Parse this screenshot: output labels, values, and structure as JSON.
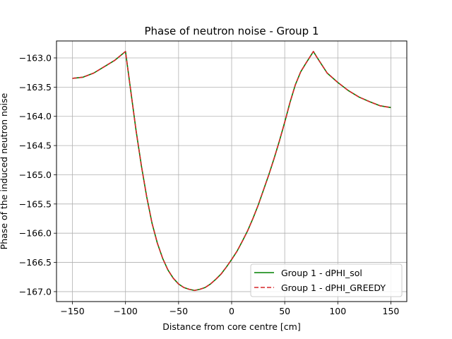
{
  "chart_data": {
    "type": "line",
    "title": "Phase of neutron noise - Group 1",
    "xlabel": "Distance from core centre [cm]",
    "ylabel": "Phase of the induced neutron noise",
    "xlim": [
      -165,
      165
    ],
    "ylim": [
      -167.17,
      -162.71
    ],
    "xticks": [
      -150,
      -100,
      -50,
      0,
      50,
      100,
      150
    ],
    "yticks": [
      -163.0,
      -163.5,
      -164.0,
      -164.5,
      -165.0,
      -165.5,
      -166.0,
      -166.5,
      -167.0
    ],
    "xtick_labels": [
      "−150",
      "−100",
      "−50",
      "0",
      "50",
      "100",
      "150"
    ],
    "ytick_labels": [
      "−163.0",
      "−163.5",
      "−164.0",
      "−164.5",
      "−165.0",
      "−165.5",
      "−166.0",
      "−166.5",
      "−167.0"
    ],
    "grid": true,
    "legend_position": "lower right",
    "series": [
      {
        "name": "Group 1 - dPHI_sol",
        "color": "#008000",
        "style": "solid",
        "x": [
          -150,
          -140,
          -130,
          -120,
          -110,
          -100,
          -95,
          -90,
          -85,
          -80,
          -75,
          -70,
          -65,
          -60,
          -55,
          -50,
          -45,
          -40,
          -35,
          -30,
          -25,
          -20,
          -15,
          -10,
          -5,
          0,
          5,
          10,
          15,
          20,
          25,
          30,
          35,
          40,
          45,
          50,
          55,
          60,
          65,
          70,
          77,
          80,
          90,
          100,
          110,
          120,
          130,
          140,
          150
        ],
        "y": [
          -163.35,
          -163.33,
          -163.26,
          -163.15,
          -163.04,
          -162.89,
          -163.57,
          -164.25,
          -164.85,
          -165.38,
          -165.83,
          -166.17,
          -166.43,
          -166.63,
          -166.77,
          -166.87,
          -166.93,
          -166.96,
          -166.98,
          -166.96,
          -166.93,
          -166.87,
          -166.79,
          -166.7,
          -166.58,
          -166.45,
          -166.31,
          -166.14,
          -165.96,
          -165.75,
          -165.52,
          -165.26,
          -165.0,
          -164.72,
          -164.42,
          -164.1,
          -163.76,
          -163.46,
          -163.24,
          -163.09,
          -162.89,
          -162.98,
          -163.26,
          -163.42,
          -163.56,
          -163.67,
          -163.75,
          -163.82,
          -163.85
        ]
      },
      {
        "name": "Group 1 - dPHI_GREEDY",
        "color": "#d62728",
        "style": "dashed",
        "x": [
          -150,
          -140,
          -130,
          -120,
          -110,
          -100,
          -95,
          -90,
          -85,
          -80,
          -75,
          -70,
          -65,
          -60,
          -55,
          -50,
          -45,
          -40,
          -35,
          -30,
          -25,
          -20,
          -15,
          -10,
          -5,
          0,
          5,
          10,
          15,
          20,
          25,
          30,
          35,
          40,
          45,
          50,
          55,
          60,
          65,
          70,
          77,
          80,
          90,
          100,
          110,
          120,
          130,
          140,
          150
        ],
        "y": [
          -163.35,
          -163.33,
          -163.26,
          -163.15,
          -163.04,
          -162.89,
          -163.57,
          -164.25,
          -164.85,
          -165.38,
          -165.83,
          -166.17,
          -166.43,
          -166.63,
          -166.77,
          -166.87,
          -166.93,
          -166.96,
          -166.98,
          -166.96,
          -166.93,
          -166.87,
          -166.79,
          -166.7,
          -166.58,
          -166.45,
          -166.31,
          -166.14,
          -165.96,
          -165.75,
          -165.52,
          -165.26,
          -165.0,
          -164.72,
          -164.42,
          -164.1,
          -163.76,
          -163.46,
          -163.24,
          -163.09,
          -162.89,
          -162.98,
          -163.26,
          -163.42,
          -163.56,
          -163.67,
          -163.75,
          -163.82,
          -163.85
        ]
      }
    ]
  }
}
